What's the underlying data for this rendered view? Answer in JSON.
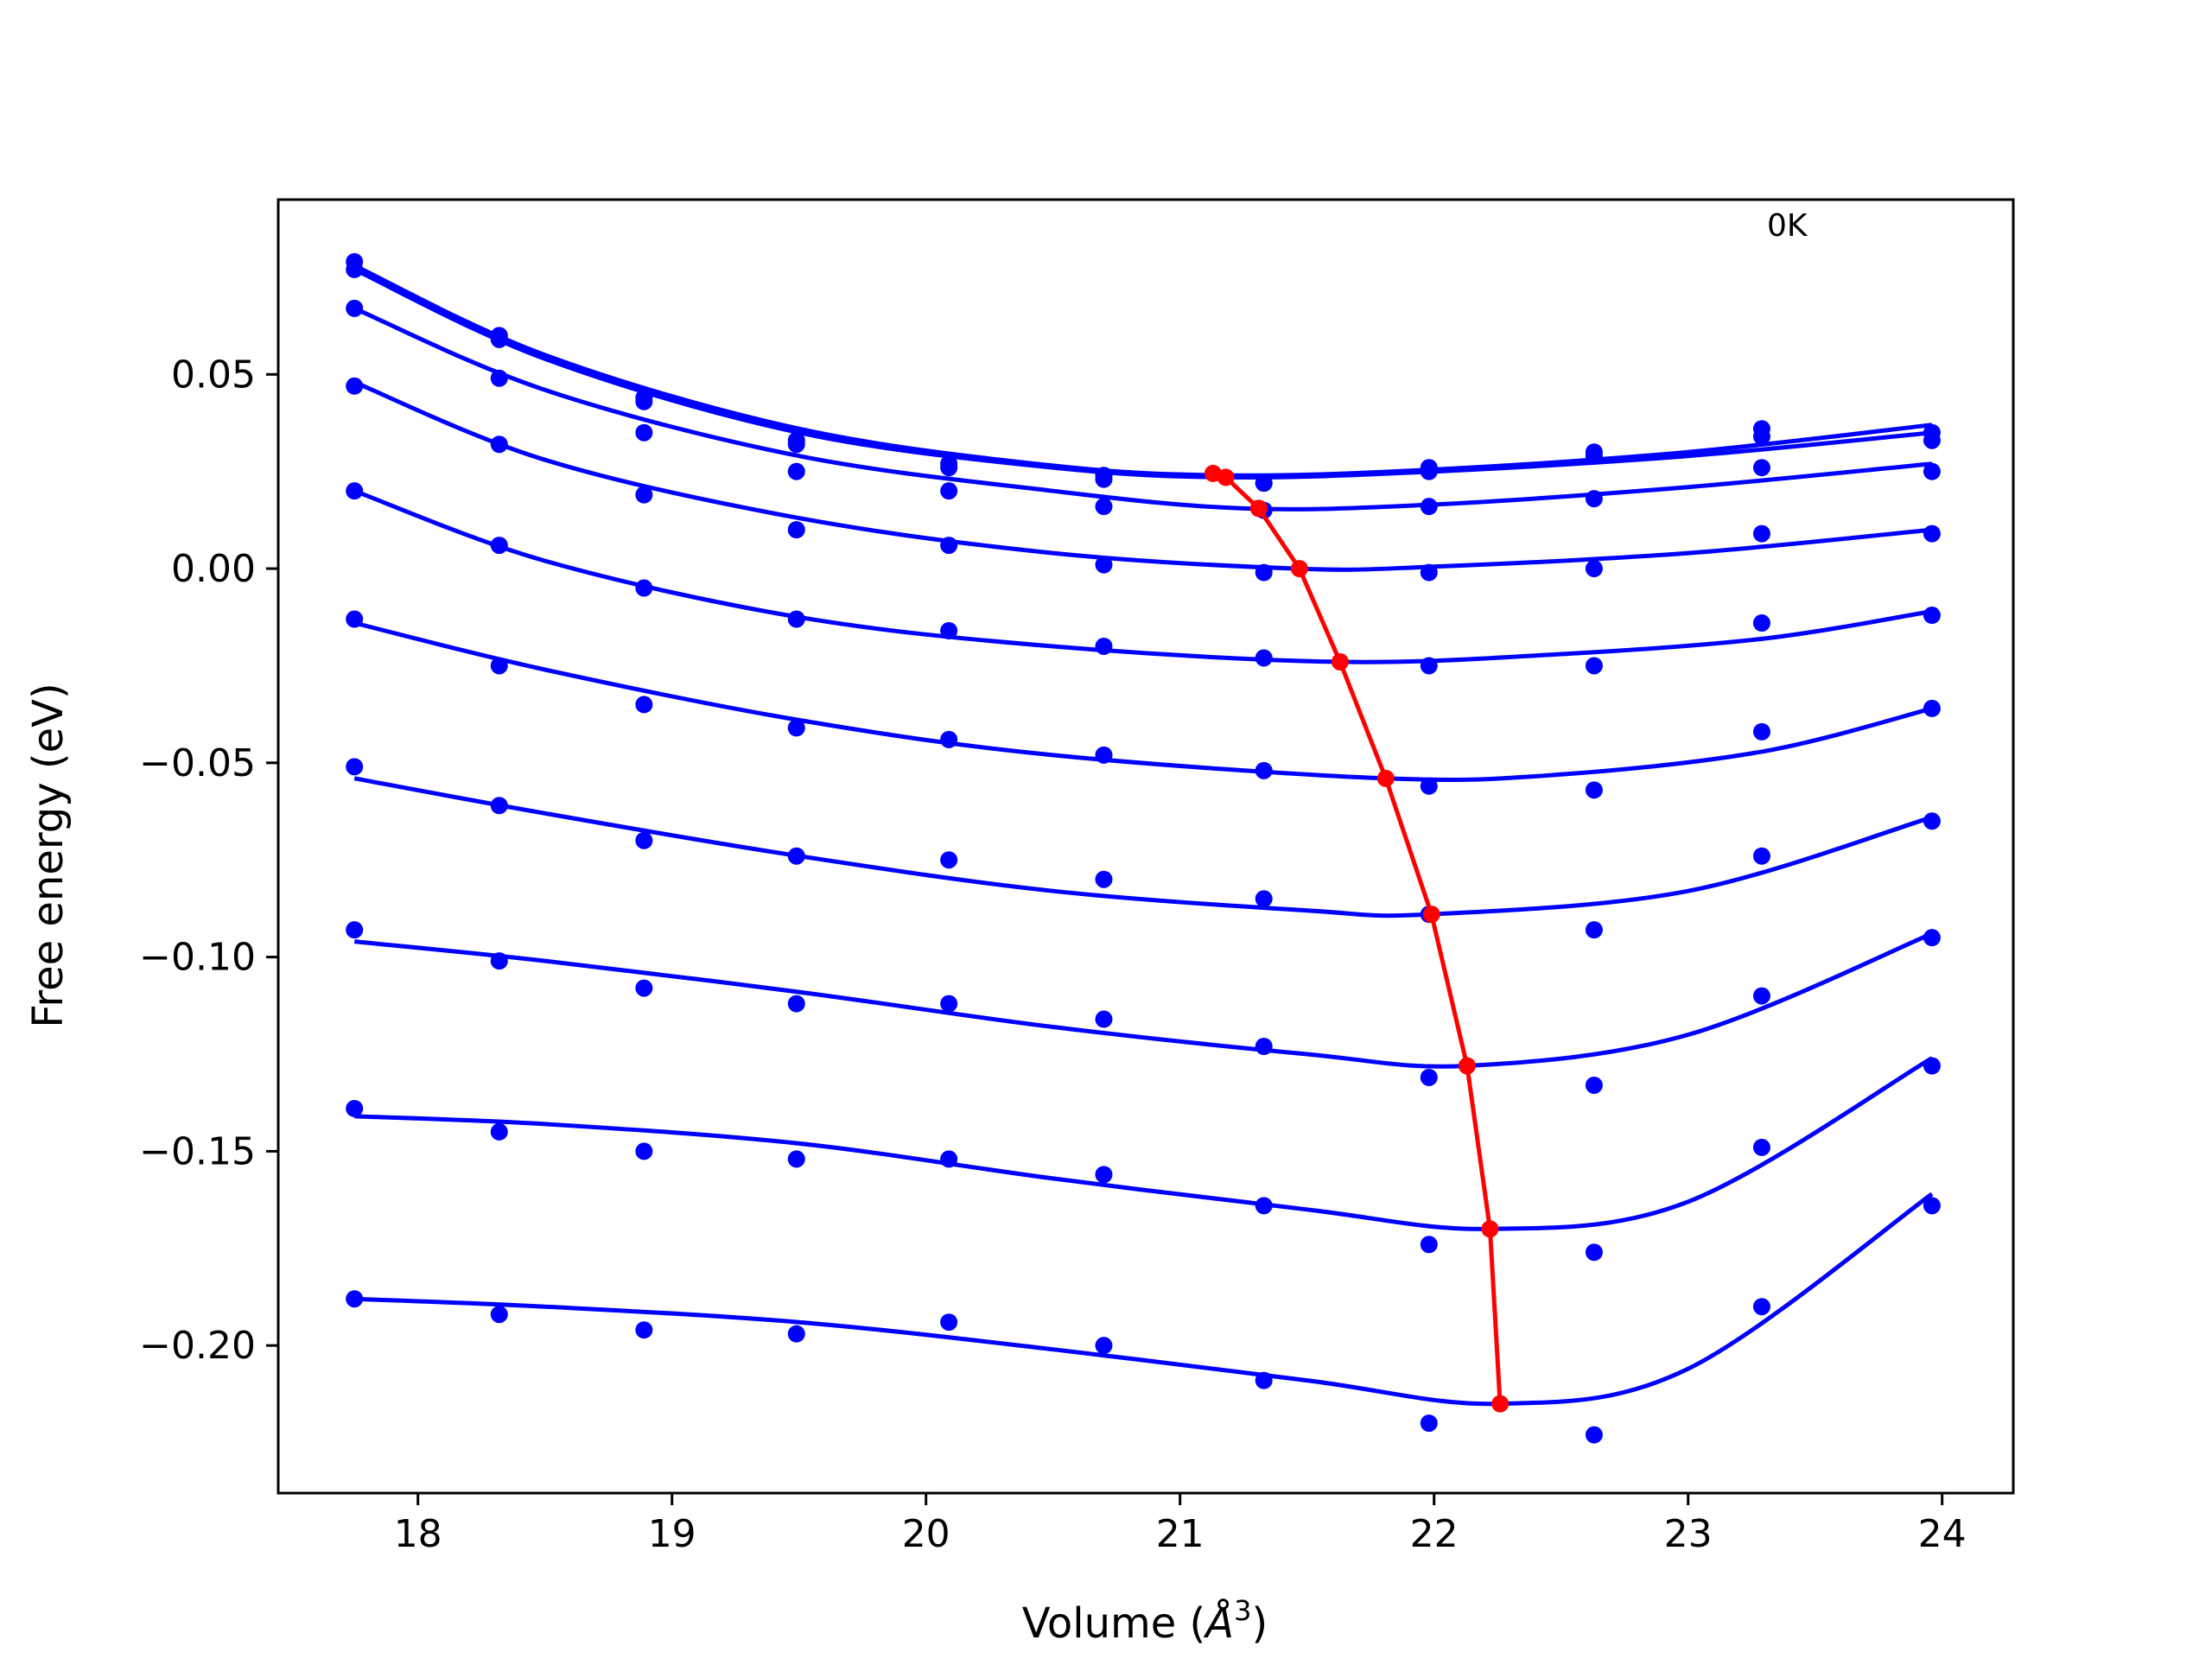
{
  "chart_data": {
    "type": "scatter",
    "title": "",
    "xlabel": "Volume (",
    "xlabel_symbol": "Å",
    "xlabel_power": "3",
    "xlabel_close": ")",
    "ylabel": "Free energy (eV)",
    "annotation": "0K",
    "xlim": [
      17.45,
      24.28
    ],
    "ylim": [
      -0.238,
      0.095
    ],
    "x_ticks": [
      18,
      19,
      20,
      21,
      22,
      23,
      24
    ],
    "x_tick_labels": [
      "18",
      "19",
      "20",
      "21",
      "22",
      "23",
      "24"
    ],
    "y_ticks": [
      0.05,
      0.0,
      -0.05,
      -0.1,
      -0.15,
      -0.2
    ],
    "y_tick_labels": [
      "0.05",
      "0.00",
      "−0.05",
      "−0.10",
      "−0.15",
      "−0.20"
    ],
    "grid": false,
    "colors": {
      "points": "#0000ff",
      "fit": "#0000ff",
      "minima": "#ff0000",
      "axes": "#000000"
    },
    "x": [
      17.75,
      18.32,
      18.89,
      19.49,
      20.09,
      20.7,
      21.33,
      21.98,
      22.63,
      23.29,
      23.96
    ],
    "series": [
      {
        "values": [
          0.079,
          0.06,
          0.044,
          0.033,
          0.027,
          0.024,
          0.022,
          0.026,
          0.03,
          0.036,
          0.035
        ],
        "fit_x": [
          17.75,
          18.5,
          19.5,
          20.5,
          21.2,
          22.0,
          23.0,
          23.96
        ],
        "fit_y": [
          0.078,
          0.055,
          0.036,
          0.0265,
          0.024,
          0.0255,
          0.03,
          0.037
        ]
      },
      {
        "values": [
          0.077,
          0.059,
          0.043,
          0.032,
          0.026,
          0.023,
          0.022,
          0.025,
          0.029,
          0.034,
          0.033
        ],
        "fit_x": [
          17.75,
          18.5,
          19.5,
          20.5,
          21.2,
          22.0,
          23.0,
          23.96
        ],
        "fit_y": [
          0.077,
          0.054,
          0.035,
          0.026,
          0.0235,
          0.025,
          0.029,
          0.035
        ]
      },
      {
        "values": [
          0.067,
          0.049,
          0.035,
          0.025,
          0.02,
          0.016,
          0.015,
          0.016,
          0.018,
          0.026,
          0.025
        ],
        "fit_x": [
          17.75,
          18.5,
          19.5,
          20.5,
          21.25,
          22.0,
          23.0,
          23.96
        ],
        "fit_y": [
          0.067,
          0.046,
          0.029,
          0.02,
          0.0155,
          0.0165,
          0.021,
          0.027
        ]
      },
      {
        "values": [
          0.047,
          0.032,
          0.019,
          0.01,
          0.006,
          0.001,
          -0.001,
          -0.001,
          0.0,
          0.009,
          0.009
        ],
        "fit_x": [
          17.75,
          18.5,
          19.5,
          20.5,
          21.46,
          22.0,
          23.0,
          23.96
        ],
        "fit_y": [
          0.048,
          0.028,
          0.013,
          0.004,
          0.0,
          0.0005,
          0.004,
          0.01
        ]
      },
      {
        "values": [
          0.02,
          0.006,
          -0.005,
          -0.013,
          -0.016,
          -0.02,
          -0.023,
          -0.025,
          -0.025,
          -0.014,
          -0.012
        ],
        "fit_x": [
          17.75,
          18.5,
          19.5,
          20.5,
          21.63,
          22.5,
          23.3,
          23.96
        ],
        "fit_y": [
          0.02,
          0.002,
          -0.0125,
          -0.02,
          -0.024,
          -0.022,
          -0.018,
          -0.011
        ]
      },
      {
        "values": [
          -0.013,
          -0.025,
          -0.035,
          -0.041,
          -0.044,
          -0.048,
          -0.052,
          -0.056,
          -0.057,
          -0.042,
          -0.036
        ],
        "fit_x": [
          17.75,
          18.5,
          19.5,
          20.5,
          21.81,
          22.5,
          23.3,
          23.96
        ],
        "fit_y": [
          -0.014,
          -0.026,
          -0.039,
          -0.048,
          -0.054,
          -0.053,
          -0.047,
          -0.036
        ]
      },
      {
        "values": [
          -0.051,
          -0.061,
          -0.07,
          -0.074,
          -0.075,
          -0.08,
          -0.085,
          -0.089,
          -0.093,
          -0.074,
          -0.065
        ],
        "fit_x": [
          17.75,
          18.5,
          19.5,
          20.5,
          21.5,
          21.98,
          23.0,
          23.96
        ],
        "fit_y": [
          -0.054,
          -0.063,
          -0.074,
          -0.083,
          -0.088,
          -0.089,
          -0.083,
          -0.064
        ]
      },
      {
        "values": [
          -0.093,
          -0.101,
          -0.108,
          -0.112,
          -0.112,
          -0.116,
          -0.123,
          -0.131,
          -0.133,
          -0.11,
          -0.095
        ],
        "fit_x": [
          17.75,
          18.5,
          19.5,
          20.5,
          21.5,
          22.13,
          23.0,
          23.96
        ],
        "fit_y": [
          -0.096,
          -0.101,
          -0.109,
          -0.118,
          -0.125,
          -0.128,
          -0.12,
          -0.094
        ]
      },
      {
        "values": [
          -0.139,
          -0.145,
          -0.15,
          -0.152,
          -0.152,
          -0.156,
          -0.164,
          -0.174,
          -0.176,
          -0.149,
          -0.128
        ],
        "fit_x": [
          17.75,
          18.5,
          19.5,
          20.5,
          21.5,
          22.22,
          23.0,
          23.96
        ],
        "fit_y": [
          -0.141,
          -0.143,
          -0.148,
          -0.157,
          -0.165,
          -0.17,
          -0.163,
          -0.126
        ]
      },
      {
        "values": [
          -0.188,
          -0.192,
          -0.196,
          -0.197,
          -0.194,
          -0.2,
          -0.209,
          -0.22,
          -0.223,
          -0.19,
          -0.164
        ],
        "fit_x": [
          17.75,
          18.5,
          19.5,
          20.5,
          21.5,
          22.26,
          23.0,
          23.96
        ],
        "fit_y": [
          -0.188,
          -0.19,
          -0.194,
          -0.201,
          -0.209,
          -0.215,
          -0.206,
          -0.161
        ]
      }
    ],
    "minima": {
      "x": [
        21.13,
        21.18,
        21.31,
        21.47,
        21.63,
        21.81,
        21.99,
        22.13,
        22.22,
        22.26
      ],
      "y": [
        0.0245,
        0.0235,
        0.0155,
        0.0,
        -0.024,
        -0.054,
        -0.089,
        -0.128,
        -0.17,
        -0.215
      ]
    }
  }
}
